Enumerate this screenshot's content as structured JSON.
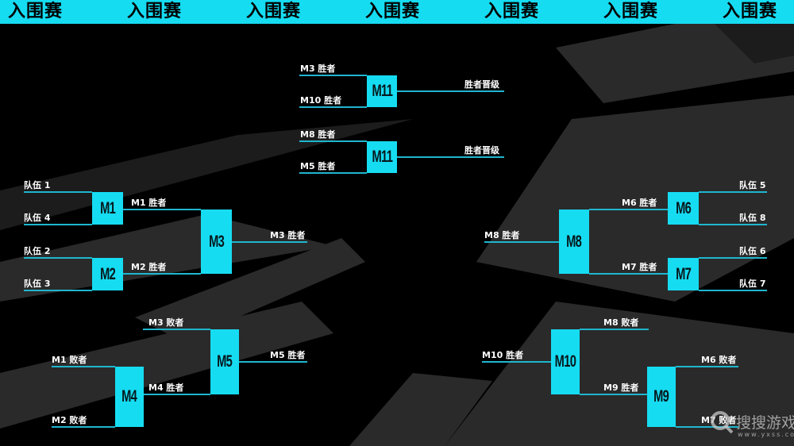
{
  "banner": {
    "titles": [
      "入围赛",
      "入围赛",
      "入围赛",
      "入围赛",
      "入围赛",
      "入围赛",
      "入围赛"
    ]
  },
  "colors": {
    "accent": "#16dcf2",
    "line": "#1fb6cf",
    "background": "#000000"
  },
  "matches": [
    "M11",
    "M11",
    "M1",
    "M2",
    "M3",
    "M5",
    "M4",
    "M6",
    "M7",
    "M8",
    "M10",
    "M9"
  ],
  "lines": [
    "M3 胜者",
    "M10 胜者",
    "胜者晋级",
    "M8 胜者",
    "M5 胜者",
    "胜者晋级",
    "队伍 1",
    "队伍 4",
    "M1 胜者",
    "队伍 2",
    "队伍 3",
    "M2 胜者",
    "M3 胜者",
    "M3 败者",
    "M4 胜者",
    "M5 胜者",
    "M1 败者",
    "M2 败者",
    "队伍 5",
    "队伍 8",
    "M6 胜者",
    "队伍 6",
    "队伍 7",
    "M7 胜者",
    "M8 胜者",
    "M8 败者",
    "M9 胜者",
    "M10 胜者",
    "M6 败者",
    "M7 败者"
  ],
  "watermark": {
    "name": "搜搜游戏",
    "url": "www.yxss.com",
    "icon": "magnifier-logo-icon"
  }
}
